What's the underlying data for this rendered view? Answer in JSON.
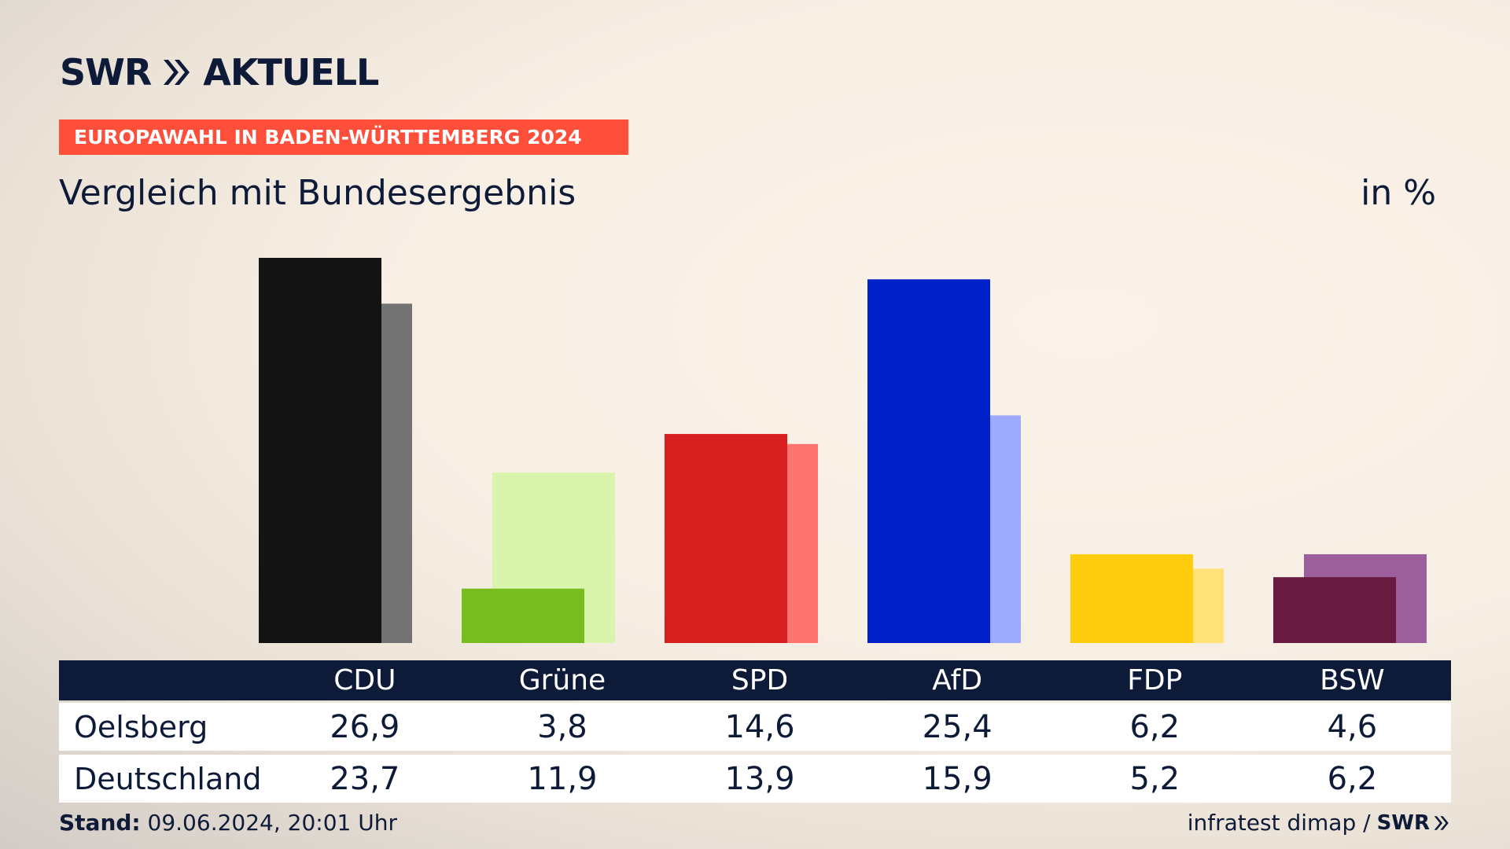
{
  "header": {
    "logo_text": "SWR",
    "logo_suffix": "AKTUELL",
    "badge": "EUROPAWAHL IN BADEN-WÜRTTEMBERG 2024",
    "subtitle": "Vergleich mit Bundesergebnis",
    "unit": "in %"
  },
  "table": {
    "rows": [
      {
        "label": "Oelsberg",
        "values": [
          "26,9",
          "3,8",
          "14,6",
          "25,4",
          "6,2",
          "4,6"
        ]
      },
      {
        "label": "Deutschland",
        "values": [
          "23,7",
          "11,9",
          "13,9",
          "15,9",
          "5,2",
          "6,2"
        ]
      }
    ]
  },
  "footer": {
    "stand_label": "Stand:",
    "stand_value": "09.06.2024, 20:01 Uhr",
    "source": "infratest dimap /",
    "source_logo": "SWR"
  },
  "chart_data": {
    "type": "bar",
    "categories": [
      "CDU",
      "Grüne",
      "SPD",
      "AfD",
      "FDP",
      "BSW"
    ],
    "series": [
      {
        "name": "Oelsberg",
        "values": [
          26.9,
          3.8,
          14.6,
          25.4,
          6.2,
          4.6
        ],
        "colors": [
          "#141414",
          "#79bc1d",
          "#d71f1f",
          "#0020c8",
          "#ffcc0e",
          "#6a1b41"
        ]
      },
      {
        "name": "Deutschland",
        "values": [
          23.7,
          11.9,
          13.9,
          15.9,
          5.2,
          6.2
        ],
        "colors": [
          "#737373",
          "#d9f5ab",
          "#ff7370",
          "#9eaaff",
          "#ffe27a",
          "#9c5f9c"
        ]
      }
    ],
    "ylim": [
      0,
      26.9
    ],
    "grid": false,
    "legend": "none"
  }
}
